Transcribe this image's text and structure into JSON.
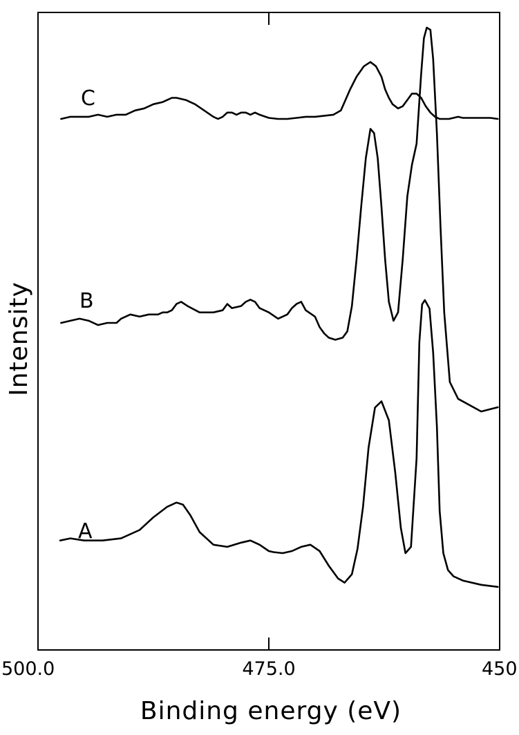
{
  "chart_data": {
    "type": "line",
    "xlabel": "Binding energy (eV)",
    "ylabel": "Intensity",
    "xlim": [
      500.0,
      450.0
    ],
    "x_reversed": true,
    "xticks": [
      {
        "value": 500.0,
        "label": "500.0"
      },
      {
        "value": 475.0,
        "label": "475.0"
      },
      {
        "value": 450.0,
        "label": "450.0"
      }
    ],
    "y_ticks_shown": false,
    "grid": false,
    "line_color": "#000000",
    "series": [
      {
        "name": "A",
        "offset": 0,
        "x": [
          497.6,
          496.5,
          495,
          493,
          491,
          489,
          487.5,
          486,
          485,
          484.3,
          483.5,
          482.5,
          481,
          479.5,
          478,
          477,
          476,
          475,
          474.5,
          473.5,
          472.5,
          471.5,
          470.5,
          469.5,
          468.5,
          467.5,
          466.8,
          466,
          465.4,
          464.8,
          464.2,
          463.5,
          462.8,
          462,
          461.3,
          460.7,
          460.2,
          459.6,
          459,
          458.7,
          458.4,
          458.1,
          457.6,
          457.2,
          456.8,
          456.5,
          456.1,
          455.6,
          455,
          454,
          452,
          450.2
        ],
        "y": [
          6,
          7,
          6,
          6,
          7,
          11,
          17,
          22,
          24,
          23,
          18,
          10,
          4,
          3,
          5,
          6,
          4,
          1,
          0.5,
          0,
          1,
          3,
          4,
          1,
          -6,
          -12,
          -14,
          -10,
          2,
          22,
          50,
          69,
          72,
          63,
          38,
          12,
          0,
          3,
          45,
          100,
          118,
          120,
          116,
          95,
          60,
          20,
          0,
          -8,
          -11,
          -13,
          -15,
          -16
        ]
      },
      {
        "name": "B",
        "offset": 44,
        "x": [
          497.5,
          496.5,
          495.5,
          494.5,
          493.5,
          492.5,
          491.5,
          491,
          490,
          489,
          488,
          487,
          486.5,
          486,
          485.5,
          485,
          484.5,
          483.8,
          482.5,
          481,
          480,
          479.5,
          479,
          478,
          477.5,
          477,
          476.5,
          476,
          475,
          474,
          473,
          472.5,
          472,
          471.5,
          471,
          470,
          469.5,
          469,
          468.5,
          467.8,
          467,
          466.5,
          466,
          465.5,
          465,
          464.5,
          464,
          463.6,
          463.2,
          462.8,
          462.4,
          462,
          461.5,
          461,
          460.5,
          460,
          459.5,
          459,
          458.5,
          458.2,
          457.9,
          457.5,
          457.2,
          456.8,
          456.4,
          456,
          455.4,
          454.5,
          452,
          450.2
        ],
        "y": [
          0,
          1,
          2,
          1,
          -1,
          0,
          0,
          2,
          4,
          3,
          4,
          4,
          5,
          5,
          6,
          9,
          10,
          8,
          5,
          5,
          6,
          9,
          7,
          8,
          10,
          11,
          10,
          7,
          5,
          2,
          4,
          7,
          9,
          10,
          6,
          3,
          -2,
          -5,
          -7,
          -8,
          -7,
          -4,
          8,
          30,
          55,
          78,
          92,
          90,
          78,
          55,
          30,
          10,
          1,
          5,
          30,
          60,
          75,
          85,
          118,
          135,
          140,
          139,
          125,
          90,
          45,
          5,
          -28,
          -36,
          -42,
          -40
        ]
      },
      {
        "name": "C",
        "offset": 75,
        "x": [
          497.5,
          496.5,
          495.5,
          494.5,
          493.5,
          492.5,
          491.5,
          490.5,
          489.5,
          488.5,
          487.5,
          486.5,
          486,
          485.5,
          485,
          484,
          483,
          482,
          481,
          480.5,
          480,
          479.5,
          479,
          478.5,
          478,
          477.5,
          477,
          476.5,
          476,
          475,
          474,
          473,
          472,
          471,
          470,
          469,
          468,
          467.2,
          466.8,
          466.2,
          465.5,
          464.7,
          464,
          463.4,
          462.8,
          462.4,
          462,
          461.6,
          461,
          460.5,
          460,
          459.5,
          459,
          458.5,
          458,
          457.5,
          457,
          456.5,
          456,
          455.5,
          455,
          454.5,
          454,
          453,
          452,
          451,
          450.2
        ],
        "y": [
          0,
          1,
          1,
          1,
          2,
          1,
          2,
          2,
          4,
          5,
          7,
          8,
          9,
          10,
          10,
          9,
          7,
          4,
          1,
          0,
          1,
          3,
          3,
          2,
          3,
          3,
          2,
          3,
          2,
          0.5,
          0,
          0,
          0.5,
          1,
          1,
          1.5,
          2,
          4,
          8,
          14,
          20,
          25,
          27,
          25,
          20,
          14,
          10,
          7,
          5,
          6,
          9,
          12,
          12,
          10,
          6,
          3,
          1,
          0,
          0,
          0,
          0.5,
          1,
          0.5,
          0.5,
          0.5,
          0.5,
          0
        ]
      }
    ]
  }
}
